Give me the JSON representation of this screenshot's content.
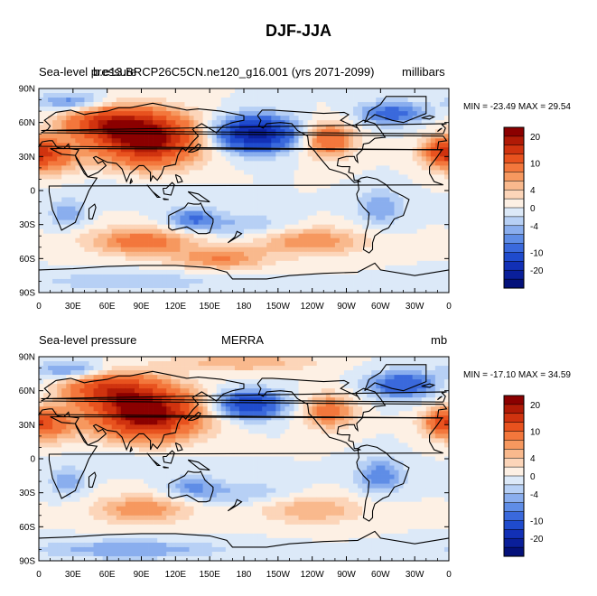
{
  "figure_title": "DJF-JJA",
  "colors": {
    "levels": [
      {
        "min": 22,
        "max": 30,
        "hex": "#8b0000"
      },
      {
        "min": 20,
        "max": 22,
        "hex": "#b01a06"
      },
      {
        "min": 16,
        "max": 20,
        "hex": "#d0330f"
      },
      {
        "min": 12,
        "max": 16,
        "hex": "#e8521e"
      },
      {
        "min": 8,
        "max": 12,
        "hex": "#f3773c"
      },
      {
        "min": 6,
        "max": 8,
        "hex": "#f6985f"
      },
      {
        "min": 4,
        "max": 6,
        "hex": "#f9b98d"
      },
      {
        "min": 2,
        "max": 4,
        "hex": "#fcd5b9"
      },
      {
        "min": 0,
        "max": 2,
        "hex": "#fdf0e4"
      },
      {
        "min": -2,
        "max": 0,
        "hex": "#dce9f8"
      },
      {
        "min": -4,
        "max": -2,
        "hex": "#b7d0f5"
      },
      {
        "min": -6,
        "max": -4,
        "hex": "#8aaeee"
      },
      {
        "min": -8,
        "max": -6,
        "hex": "#5f8de6"
      },
      {
        "min": -12,
        "max": -8,
        "hex": "#3a69dc"
      },
      {
        "min": -16,
        "max": -12,
        "hex": "#1f4bcd"
      },
      {
        "min": -20,
        "max": -16,
        "hex": "#1230b6"
      },
      {
        "min": -22,
        "max": -20,
        "hex": "#0a1f9a"
      },
      {
        "min": -30,
        "max": -22,
        "hex": "#04117a"
      }
    ],
    "coast": "#000000"
  },
  "chart_data": [
    {
      "type": "heatmap",
      "title_left": "Sea-level pressure",
      "title_center": "b.e13.BRCP26C5CN.ne120_g16.001 (yrs 2071-2099)",
      "units": "millibars",
      "min_max_text": "MIN = -23.49  MAX =  29.54",
      "min": -23.49,
      "max": 29.54,
      "x_ticks": [
        "0",
        "30E",
        "60E",
        "90E",
        "120E",
        "150E",
        "180",
        "150W",
        "120W",
        "90W",
        "60W",
        "30W",
        "0"
      ],
      "y_ticks": [
        "90N",
        "60N",
        "30N",
        "0",
        "30S",
        "60S",
        "90S"
      ],
      "colorbar_labels": [
        "20",
        "10",
        "4",
        "0",
        "-4",
        "-10",
        "-20"
      ],
      "field_centers": [
        {
          "lon": 95,
          "lat": 45,
          "value": 24,
          "rlon": 45,
          "rlat": 22
        },
        {
          "lon": 60,
          "lat": 60,
          "value": 14,
          "rlon": 40,
          "rlat": 15
        },
        {
          "lon": 10,
          "lat": 30,
          "value": 10,
          "rlon": 25,
          "rlat": 15
        },
        {
          "lon": 190,
          "lat": 50,
          "value": -22,
          "rlon": 35,
          "rlat": 15
        },
        {
          "lon": 255,
          "lat": 45,
          "value": 12,
          "rlon": 22,
          "rlat": 15
        },
        {
          "lon": 355,
          "lat": 35,
          "value": 12,
          "rlon": 18,
          "rlat": 12
        },
        {
          "lon": 310,
          "lat": 68,
          "value": -10,
          "rlon": 30,
          "rlat": 10
        },
        {
          "lon": 30,
          "lat": 78,
          "value": -8,
          "rlon": 30,
          "rlat": 8
        },
        {
          "lon": 90,
          "lat": -45,
          "value": 10,
          "rlon": 45,
          "rlat": 12
        },
        {
          "lon": 240,
          "lat": -45,
          "value": 8,
          "rlon": 45,
          "rlat": 12
        },
        {
          "lon": 160,
          "lat": -60,
          "value": 8,
          "rlon": 40,
          "rlat": 10
        },
        {
          "lon": 135,
          "lat": -25,
          "value": -8,
          "rlon": 22,
          "rlat": 10
        },
        {
          "lon": 25,
          "lat": -20,
          "value": -6,
          "rlon": 15,
          "rlat": 12
        },
        {
          "lon": 300,
          "lat": -15,
          "value": -6,
          "rlon": 20,
          "rlat": 15
        },
        {
          "lon": 180,
          "lat": -30,
          "value": -4,
          "rlon": 40,
          "rlat": 10
        },
        {
          "lon": 80,
          "lat": -80,
          "value": -4,
          "rlon": 80,
          "rlat": 8
        },
        {
          "lon": 80,
          "lat": 0,
          "value": -2,
          "rlon": 50,
          "rlat": 10
        }
      ]
    },
    {
      "type": "heatmap",
      "title_left": "Sea-level pressure",
      "title_center": "MERRA",
      "units": "mb",
      "min_max_text": "MIN = -17.10  MAX =  34.59",
      "min": -17.1,
      "max": 34.59,
      "x_ticks": [
        "0",
        "30E",
        "60E",
        "90E",
        "120E",
        "150E",
        "180",
        "150W",
        "120W",
        "90W",
        "60W",
        "30W",
        "0"
      ],
      "y_ticks": [
        "90N",
        "60N",
        "30N",
        "0",
        "30S",
        "60S",
        "90S"
      ],
      "colorbar_labels": [
        "20",
        "10",
        "4",
        "0",
        "-4",
        "-10",
        "-20"
      ],
      "field_centers": [
        {
          "lon": 95,
          "lat": 40,
          "value": 26,
          "rlon": 45,
          "rlat": 22
        },
        {
          "lon": 60,
          "lat": 62,
          "value": 14,
          "rlon": 40,
          "rlat": 15
        },
        {
          "lon": 10,
          "lat": 30,
          "value": 8,
          "rlon": 25,
          "rlat": 15
        },
        {
          "lon": 185,
          "lat": 48,
          "value": -16,
          "rlon": 30,
          "rlat": 12
        },
        {
          "lon": 255,
          "lat": 42,
          "value": 10,
          "rlon": 22,
          "rlat": 15
        },
        {
          "lon": 355,
          "lat": 32,
          "value": 10,
          "rlon": 18,
          "rlat": 12
        },
        {
          "lon": 320,
          "lat": 65,
          "value": -12,
          "rlon": 30,
          "rlat": 12
        },
        {
          "lon": 30,
          "lat": 78,
          "value": -8,
          "rlon": 30,
          "rlat": 8
        },
        {
          "lon": 180,
          "lat": 85,
          "value": 6,
          "rlon": 60,
          "rlat": 8
        },
        {
          "lon": 90,
          "lat": -45,
          "value": 8,
          "rlon": 40,
          "rlat": 12
        },
        {
          "lon": 240,
          "lat": -45,
          "value": 6,
          "rlon": 45,
          "rlat": 12
        },
        {
          "lon": 135,
          "lat": -25,
          "value": -6,
          "rlon": 22,
          "rlat": 10
        },
        {
          "lon": 25,
          "lat": -20,
          "value": -6,
          "rlon": 15,
          "rlat": 12
        },
        {
          "lon": 300,
          "lat": -15,
          "value": -8,
          "rlon": 20,
          "rlat": 15
        },
        {
          "lon": 180,
          "lat": -30,
          "value": -4,
          "rlon": 40,
          "rlat": 10
        },
        {
          "lon": 80,
          "lat": -80,
          "value": -6,
          "rlon": 80,
          "rlat": 8
        },
        {
          "lon": 80,
          "lat": 0,
          "value": -2,
          "rlon": 50,
          "rlat": 10
        }
      ]
    }
  ]
}
